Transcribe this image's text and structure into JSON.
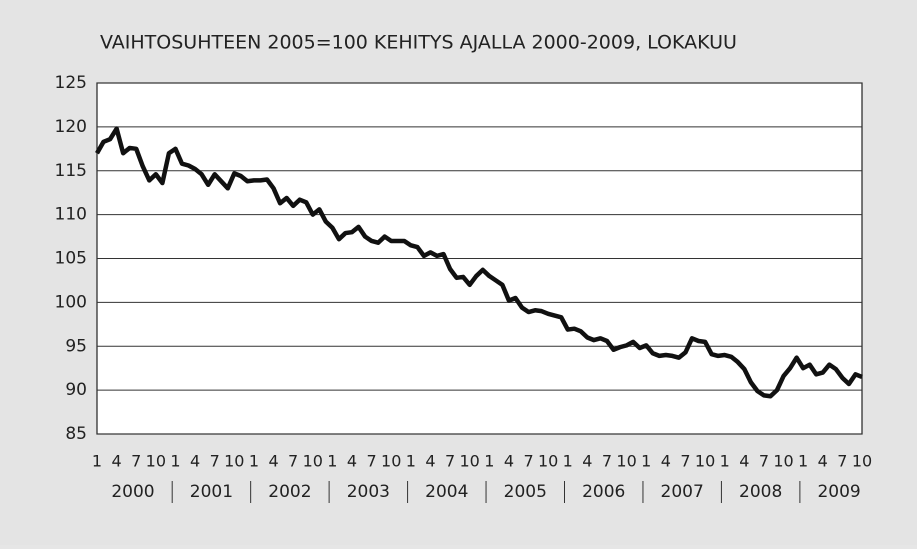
{
  "chart_data": {
    "type": "line",
    "title": "VAIHTOSUHTEEN 2005=100 KEHITYS AJALLA 2000-2009, LOKAKUU",
    "categories": [
      "1",
      null,
      null,
      "4",
      null,
      null,
      "7",
      null,
      null,
      "10",
      null,
      null,
      "1",
      null,
      null,
      "4",
      null,
      null,
      "7",
      null,
      null,
      "10",
      null,
      null,
      "1",
      null,
      null,
      "4",
      null,
      null,
      "7",
      null,
      null,
      "10",
      null,
      null,
      "1",
      null,
      null,
      "4",
      null,
      null,
      "7",
      null,
      null,
      "10",
      null,
      null,
      "1",
      null,
      null,
      "4",
      null,
      null,
      "7",
      null,
      null,
      "10",
      null,
      null,
      "1",
      null,
      null,
      "4",
      null,
      null,
      "7",
      null,
      null,
      "10",
      null,
      null,
      "1",
      null,
      null,
      "4",
      null,
      null,
      "7",
      null,
      null,
      "10",
      null,
      null,
      "1",
      null,
      null,
      "4",
      null,
      null,
      "7",
      null,
      null,
      "10",
      null,
      null,
      "1",
      null,
      null,
      "4",
      null,
      null,
      "7",
      null,
      null,
      "10",
      null,
      null,
      "1",
      null,
      null,
      "4",
      null,
      null,
      "7",
      null,
      null,
      "10"
    ],
    "year_labels": [
      "2000",
      "2001",
      "2002",
      "2003",
      "2004",
      "2005",
      "2006",
      "2007",
      "2008",
      "2009"
    ],
    "values": [
      117,
      118.3,
      118.6,
      119.8,
      117,
      117.6,
      117.5,
      115.5,
      113.9,
      114.6,
      113.6,
      117,
      117.5,
      115.8,
      115.6,
      115.2,
      114.6,
      113.4,
      114.6,
      113.8,
      113,
      114.7,
      114.4,
      113.8,
      113.9,
      113.9,
      114,
      113,
      111.3,
      111.9,
      111,
      111.7,
      111.4,
      110,
      110.6,
      109.2,
      108.5,
      107.2,
      107.9,
      108,
      108.6,
      107.5,
      107,
      106.8,
      107.5,
      107,
      107,
      107,
      106.5,
      106.3,
      105.3,
      105.7,
      105.3,
      105.5,
      103.8,
      102.8,
      102.9,
      102,
      103,
      103.7,
      103,
      102.5,
      102,
      100.2,
      100.5,
      99.4,
      98.9,
      99.1,
      99,
      98.7,
      98.5,
      98.3,
      96.9,
      97,
      96.7,
      96,
      95.7,
      95.9,
      95.6,
      94.6,
      94.9,
      95.1,
      95.5,
      94.8,
      95.1,
      94.2,
      93.9,
      94,
      93.9,
      93.7,
      94.3,
      95.9,
      95.6,
      95.5,
      94.1,
      93.9,
      94,
      93.8,
      93.2,
      92.4,
      90.9,
      89.9,
      89.4,
      89.3,
      90,
      91.6,
      92.5,
      93.7,
      92.5,
      92.9,
      91.8,
      92,
      92.9,
      92.4,
      91.4,
      90.7,
      91.8,
      91.5
    ],
    "color": "#111111",
    "ylim": [
      85,
      125
    ],
    "yticks": [
      85,
      90,
      95,
      100,
      105,
      110,
      115,
      120,
      125
    ],
    "grid": true
  }
}
